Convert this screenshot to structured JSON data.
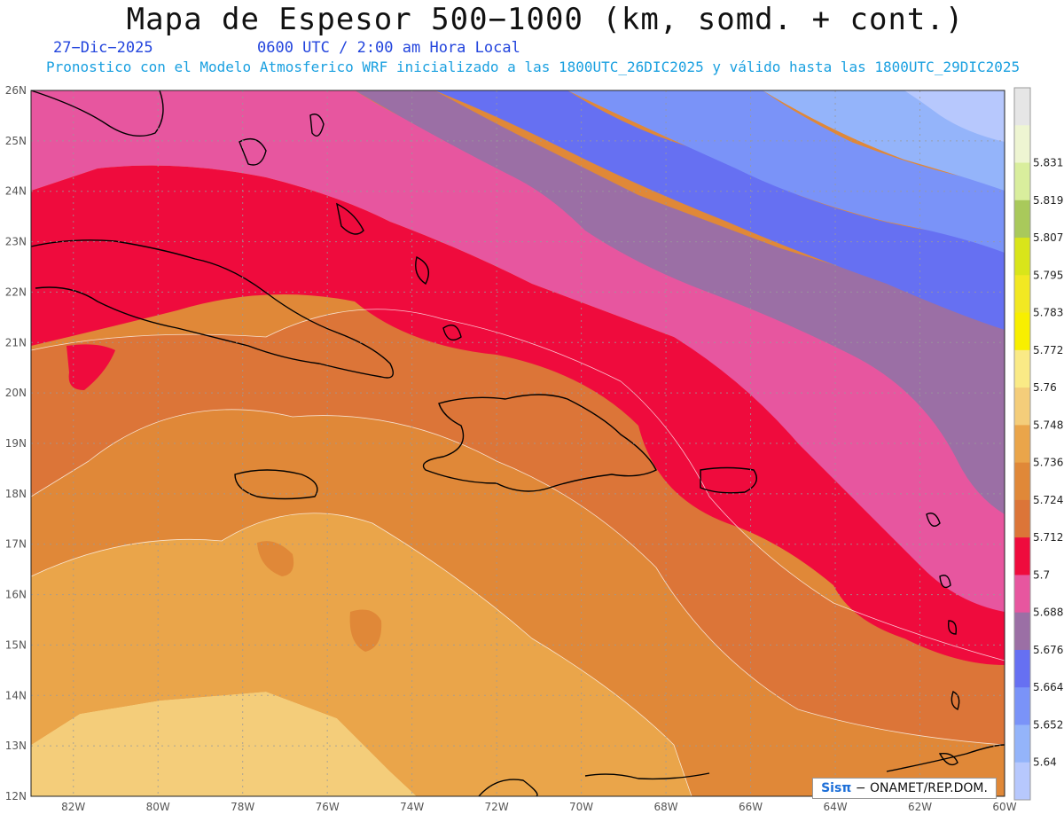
{
  "title": "Mapa de Espesor 500−1000 (km, somd. + cont.)",
  "date_label": "27−Dic−2025",
  "time_label": "0600 UTC / 2:00 am Hora Local",
  "model_line": "Pronostico con el Modelo Atmosferico WRF inicializado a las 1800UTC_26DIC2025 y válido hasta las  1800UTC_29DIC2025",
  "credit": {
    "brand": "Sisπ",
    "text": "− ONAMET/REP.DOM."
  },
  "map": {
    "lon_range": [
      -83,
      -60
    ],
    "lat_range": [
      12,
      26
    ],
    "lon_ticks": [
      "82W",
      "80W",
      "78W",
      "76W",
      "74W",
      "72W",
      "70W",
      "68W",
      "66W",
      "64W",
      "62W",
      "60W"
    ],
    "lat_ticks": [
      "12N",
      "13N",
      "14N",
      "15N",
      "16N",
      "17N",
      "18N",
      "19N",
      "20N",
      "21N",
      "22N",
      "23N",
      "24N",
      "25N",
      "26N"
    ],
    "colorbar_labels": [
      "5.831",
      "5.819",
      "5.807",
      "5.795",
      "5.783",
      "5.772",
      "5.76",
      "5.748",
      "5.736",
      "5.724",
      "5.712",
      "5.7",
      "5.688",
      "5.676",
      "5.664",
      "5.652",
      "5.64"
    ],
    "colorbar_colors": [
      "#e6e6e6",
      "#eef5d2",
      "#d9ee9d",
      "#a9c95b",
      "#d9e51a",
      "#f2e822",
      "#f8ef00",
      "#faea86",
      "#f4cd7a",
      "#eaa54a",
      "#e08838",
      "#dc7538",
      "#ef0b3d",
      "#e7569f",
      "#9b6fa5",
      "#6670f2",
      "#7a93f8",
      "#94b4fa",
      "#b7c8fd"
    ]
  }
}
